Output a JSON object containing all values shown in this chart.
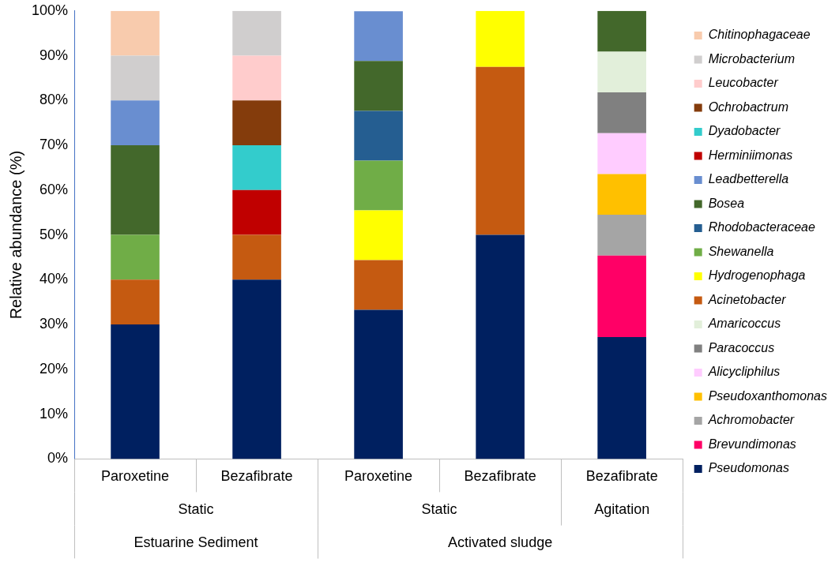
{
  "chart_data": {
    "type": "bar",
    "stacked": true,
    "ylabel": "Relative abundance (%)",
    "categories": [
      "Paroxetine",
      "Bezafibrate",
      "Paroxetine",
      "Bezafibrate",
      "Bezafibrate"
    ],
    "annotations": [
      "Static",
      "Static",
      "Agitation",
      "Estuarine Sediment",
      "Activated sludge"
    ],
    "ylim": [
      0,
      100
    ],
    "yticks": [
      {
        "value": 0,
        "label": "0%"
      },
      {
        "value": 10,
        "label": "10%"
      },
      {
        "value": 20,
        "label": "20%"
      },
      {
        "value": 30,
        "label": "30%"
      },
      {
        "value": 40,
        "label": "40%"
      },
      {
        "value": 50,
        "label": "50%"
      },
      {
        "value": 60,
        "label": "60%"
      },
      {
        "value": 70,
        "label": "70%"
      },
      {
        "value": 80,
        "label": "80%"
      },
      {
        "value": 90,
        "label": "90%"
      },
      {
        "value": 100,
        "label": "100%"
      }
    ],
    "grid": false,
    "legend": "right",
    "series": [
      {
        "name": "Pseudomonas",
        "color": "#002060",
        "values": [
          30,
          40,
          33.3,
          50,
          27.2
        ]
      },
      {
        "name": "Brevundimonas",
        "color": "#ff0066",
        "values": [
          null,
          null,
          null,
          null,
          18.2
        ]
      },
      {
        "name": "Achromobacter",
        "color": "#a5a5a5",
        "values": [
          null,
          null,
          null,
          null,
          9.1
        ]
      },
      {
        "name": "Pseudoxanthomonas",
        "color": "#ffc000",
        "values": [
          null,
          null,
          null,
          null,
          9.1
        ]
      },
      {
        "name": "Alicycliphilus",
        "color": "#ffccff",
        "values": [
          null,
          null,
          null,
          null,
          9.1
        ]
      },
      {
        "name": "Paracoccus",
        "color": "#808080",
        "values": [
          null,
          null,
          null,
          null,
          9.1
        ]
      },
      {
        "name": "Amaricoccus",
        "color": "#e2efda",
        "values": [
          null,
          null,
          null,
          null,
          9.1
        ]
      },
      {
        "name": "Acinetobacter",
        "color": "#c55a11",
        "values": [
          10,
          10,
          11.1,
          37.5,
          null
        ]
      },
      {
        "name": "Hydrogenophaga",
        "color": "#ffff00",
        "values": [
          null,
          null,
          11.1,
          12.5,
          null
        ]
      },
      {
        "name": "Shewanella",
        "color": "#70ad47",
        "values": [
          10,
          null,
          11.1,
          null,
          null
        ]
      },
      {
        "name": "Rhodobacteraceae",
        "color": "#255e91",
        "values": [
          null,
          null,
          11.1,
          null,
          null
        ]
      },
      {
        "name": "Bosea",
        "color": "#43682b",
        "values": [
          20,
          null,
          11.1,
          null,
          9.1
        ]
      },
      {
        "name": "Leadbetterella",
        "color": "#698ed0",
        "values": [
          10,
          null,
          11.1,
          null,
          null
        ]
      },
      {
        "name": "Herminiimonas",
        "color": "#c00000",
        "values": [
          null,
          10,
          null,
          null,
          null
        ]
      },
      {
        "name": "Dyadobacter",
        "color": "#33cccc",
        "values": [
          null,
          10,
          null,
          null,
          null
        ]
      },
      {
        "name": "Ochrobactrum",
        "color": "#843c0c",
        "values": [
          null,
          10,
          null,
          null,
          null
        ]
      },
      {
        "name": "Leucobacter",
        "color": "#ffcccc",
        "values": [
          null,
          10,
          null,
          null,
          null
        ]
      },
      {
        "name": "Microbacterium",
        "color": "#d0cece",
        "values": [
          10,
          10,
          null,
          null,
          null
        ]
      },
      {
        "name": "Chitinophagaceae",
        "color": "#f8cbad",
        "values": [
          10,
          null,
          null,
          null,
          null
        ]
      }
    ]
  }
}
